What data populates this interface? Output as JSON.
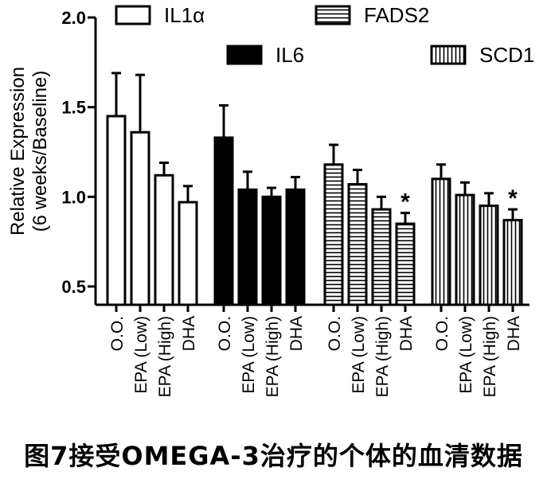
{
  "chart_data": {
    "type": "bar",
    "ylabel": [
      "Relative Expression",
      "(6 weeks/Baseline)"
    ],
    "ylim": [
      0.5,
      2.0
    ],
    "yticks": [
      "0.5",
      "1.0",
      "1.5",
      "2.0"
    ],
    "categories": [
      "O.O.",
      "EPA (Low)",
      "EPA (High)",
      "DHA"
    ],
    "legend": [
      "IL1α",
      "IL6",
      "FADS2",
      "SCD1"
    ],
    "series": [
      {
        "name": "IL1α",
        "pattern": "open",
        "values": [
          1.45,
          1.36,
          1.12,
          0.97
        ],
        "errors": [
          0.24,
          0.32,
          0.07,
          0.09
        ],
        "significance": [
          "",
          "",
          "",
          ""
        ]
      },
      {
        "name": "IL6",
        "pattern": "solid",
        "values": [
          1.33,
          1.04,
          1.0,
          1.04
        ],
        "errors": [
          0.18,
          0.1,
          0.05,
          0.07
        ],
        "significance": [
          "",
          "",
          "",
          ""
        ]
      },
      {
        "name": "FADS2",
        "pattern": "horizontal-stripes",
        "values": [
          1.18,
          1.07,
          0.93,
          0.85
        ],
        "errors": [
          0.11,
          0.08,
          0.07,
          0.06
        ],
        "significance": [
          "",
          "",
          "",
          "*"
        ]
      },
      {
        "name": "SCD1",
        "pattern": "vertical-stripes",
        "values": [
          1.1,
          1.01,
          0.95,
          0.87
        ],
        "errors": [
          0.08,
          0.07,
          0.07,
          0.06
        ],
        "significance": [
          "",
          "",
          "",
          "*"
        ]
      }
    ],
    "grid": false,
    "legend_placement": "top"
  },
  "caption": "图7接受OMEGA-3治疗的个体的血清数据"
}
